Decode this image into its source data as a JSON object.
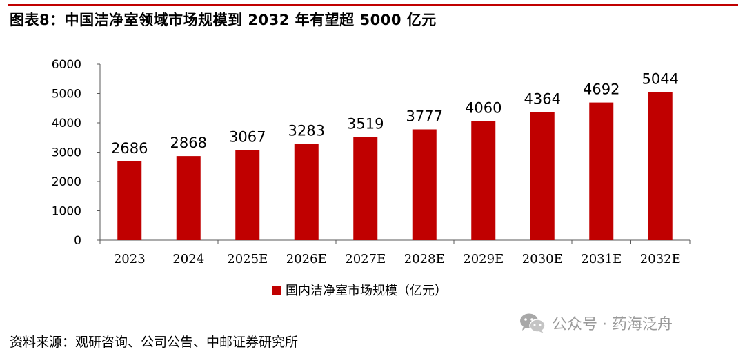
{
  "header": {
    "title": "图表8：中国洁净室领域市场规模到 2032 年有望超 5000 亿元"
  },
  "chart_data": {
    "type": "bar",
    "categories": [
      "2023",
      "2024",
      "2025E",
      "2026E",
      "2027E",
      "2028E",
      "2029E",
      "2030E",
      "2031E",
      "2032E"
    ],
    "series": [
      {
        "name": "国内洁净室市场规模（亿元）",
        "values": [
          2686,
          2868,
          3067,
          3283,
          3519,
          3777,
          4060,
          4364,
          4692,
          5044
        ],
        "color": "#C00000"
      }
    ],
    "ylim": [
      0,
      6000
    ],
    "yticks": [
      "0",
      "1000",
      "2000",
      "3000",
      "4000",
      "5000",
      "6000"
    ],
    "data_labels": [
      "2686",
      "2868",
      "3067",
      "3283",
      "3519",
      "3777",
      "4060",
      "4364",
      "4692",
      "5044"
    ],
    "grid": false,
    "legend_position": "bottom"
  },
  "footer": {
    "source": "资料来源：观研咨询、公司公告、中邮证券研究所"
  },
  "watermark": {
    "text": "公众号 · 药海泛舟",
    "icon": "wechat-icon"
  },
  "colors": {
    "accent": "#C00000",
    "axis": "#595959",
    "watermark": "#9a9a9a"
  }
}
